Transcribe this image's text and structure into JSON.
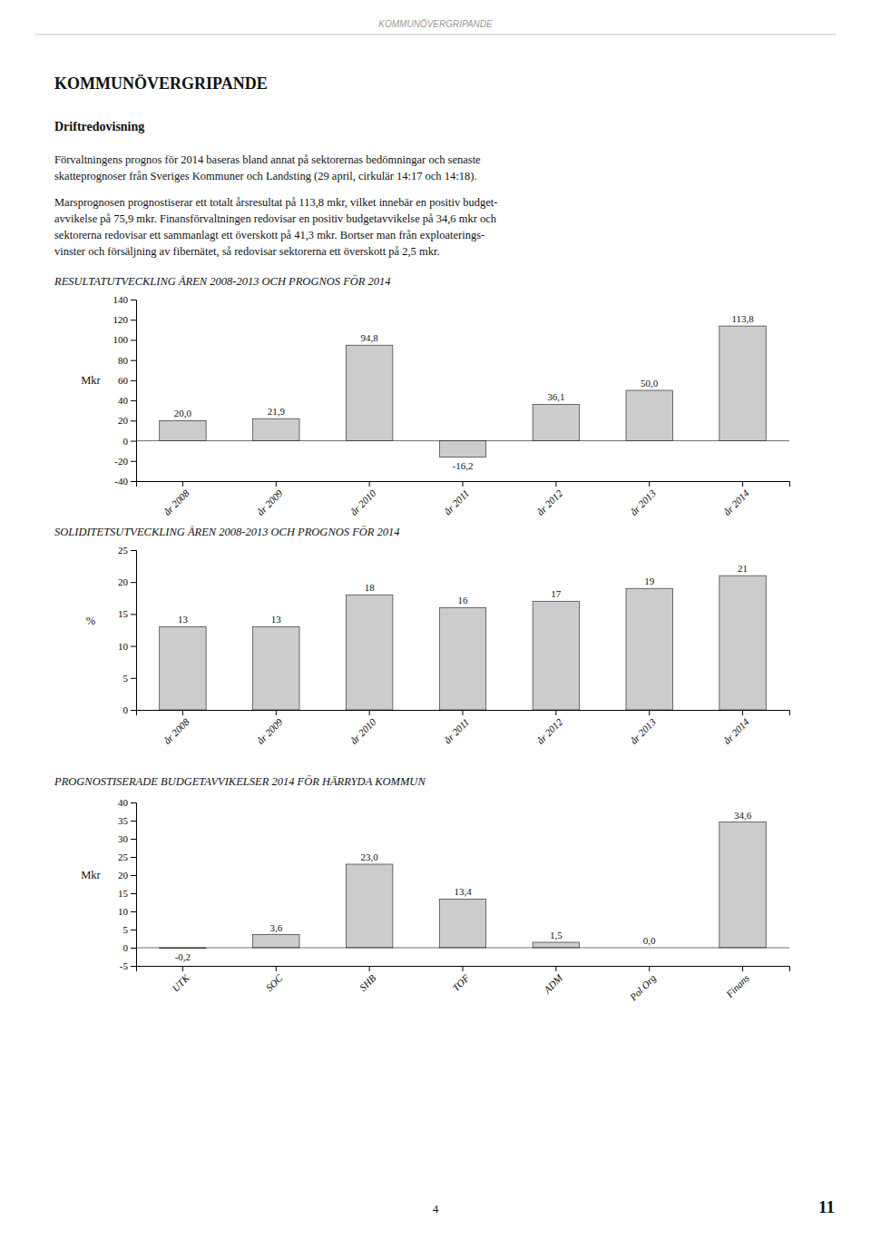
{
  "page_header": "KOMMUNÖVERGRIPANDE",
  "section_title": "KOMMUNÖVERGRIPANDE",
  "subsection_title": "Driftredovisning",
  "paragraphs": [
    [
      "Förvaltningens prognos för 2014 baseras bland annat på sektorernas bedömningar och senaste",
      "skatteprognoser från Sveriges Kommuner och Landsting (29 april, cirkulär 14:17 och 14:18)."
    ],
    [
      "Marsprognosen prognostiserar ett totalt årsresultat på 113,8 mkr, vilket innebär en positiv budget-",
      "avvikelse på 75,9 mkr. Finansförvaltningen redovisar en positiv budgetavvikelse på 34,6 mkr och",
      "sektorerna redovisar ett sammanlagt ett överskott på 41,3 mkr. Bortser man från exploaterings-",
      "vinster och försäljning av fibernätet, så redovisar sektorerna ett överskott på 2,5 mkr."
    ]
  ],
  "page_number": "4",
  "page_right_number": "11",
  "chart_data": [
    {
      "type": "bar",
      "title": "RESULTATUTVECKLING ÅREN 2008-2013 OCH PROGNOS FÖR 2014",
      "categories": [
        "år 2008",
        "år 2009",
        "år 2010",
        "år 2011",
        "år 2012",
        "år 2013",
        "år 2014"
      ],
      "values": [
        20.0,
        21.9,
        94.8,
        -16.2,
        36.1,
        50.0,
        113.8
      ],
      "value_labels": [
        "20,0",
        "21,9",
        "94,8",
        "-16,2",
        "36,1",
        "50,0",
        "113,8"
      ],
      "data_labels": true,
      "ylabel": "Mkr",
      "ylim": [
        -40,
        140
      ],
      "yticks": [
        -40,
        -20,
        0,
        20,
        40,
        60,
        80,
        100,
        120,
        140
      ],
      "color": "#cccccc",
      "grid": false
    },
    {
      "type": "bar",
      "title": "SOLIDITETSUTVECKLING ÅREN 2008-2013 OCH PROGNOS FÖR 2014",
      "categories": [
        "år 2008",
        "år 2009",
        "år 2010",
        "år 2011",
        "år 2012",
        "år 2013",
        "år 2014"
      ],
      "values": [
        13,
        13,
        18,
        16,
        17,
        19,
        21
      ],
      "data_labels": true,
      "ylabel": "%",
      "ylim": [
        0,
        25
      ],
      "yticks": [
        0,
        5,
        10,
        15,
        20,
        25
      ],
      "color": "#cccccc",
      "grid": false
    },
    {
      "type": "bar",
      "title": "PROGNOSTISERADE BUDGETAVVIKELSER 2014 FÖR HÄRRYDA KOMMUN",
      "categories": [
        "UTK",
        "SOC",
        "SHB",
        "TOF",
        "ADM",
        "Pol Org",
        "Finans"
      ],
      "values": [
        -0.2,
        3.6,
        23.0,
        13.4,
        1.5,
        0.0,
        34.6
      ],
      "value_labels": [
        "-0,2",
        "3,6",
        "23,0",
        "13,4",
        "1,5",
        "0,0",
        "34,6"
      ],
      "data_labels": true,
      "ylabel": "Mkr",
      "ylim": [
        -5,
        40
      ],
      "yticks": [
        -5,
        0,
        5,
        10,
        15,
        20,
        25,
        30,
        35,
        40
      ],
      "color": "#cccccc",
      "grid": false
    }
  ]
}
